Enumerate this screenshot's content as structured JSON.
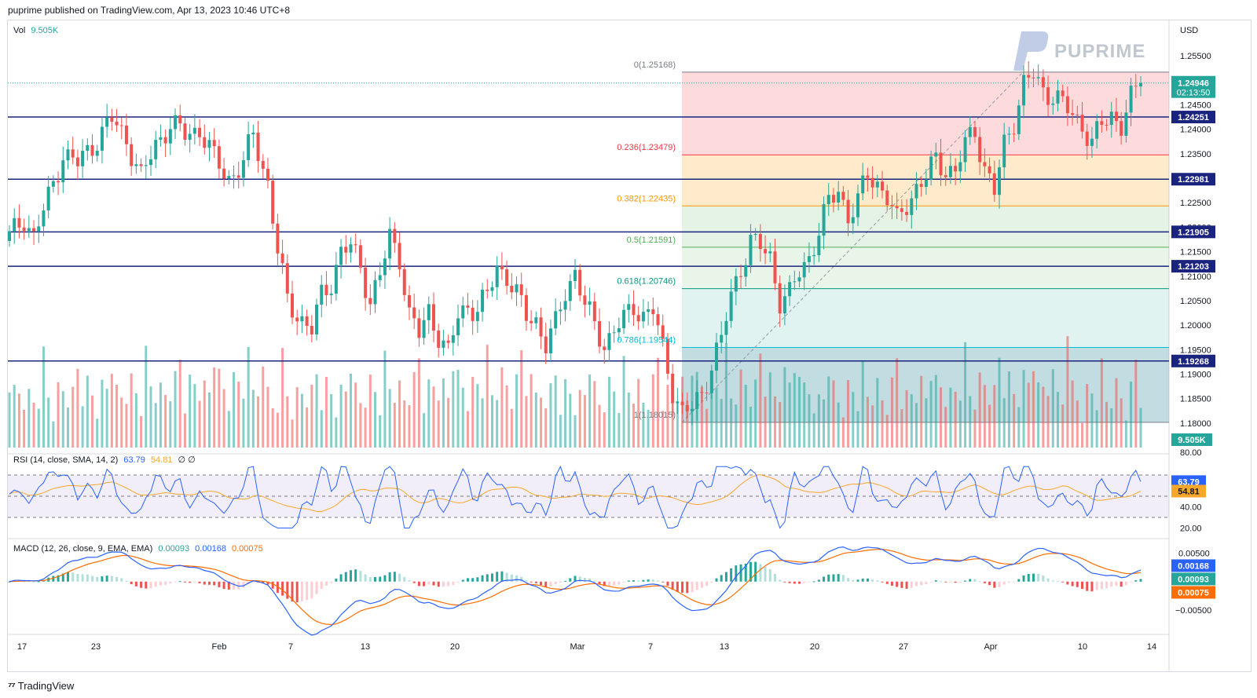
{
  "header": {
    "published": "puprime published on TradingView.com, Apr 13, 2023 10:46 UTC+8"
  },
  "footer": {
    "brand": "TradingView"
  },
  "watermark": {
    "text": "PUPRIME"
  },
  "colors": {
    "up": "#26a69a",
    "down": "#ef5350",
    "hline": "#1a237e",
    "rsi": "#2962ff",
    "rsi_ma": "#f7a72a",
    "macd": "#2962ff",
    "signal": "#ff6d00"
  },
  "price_pane": {
    "vol_label": "Vol",
    "vol_value": "9.505K",
    "currency": "USD",
    "last_price": "1.24946",
    "countdown": "02:13:50",
    "vol_tag": "9.505K",
    "axis_ticks": [
      "1.25500",
      "1.24500",
      "1.24000",
      "1.23500",
      "1.22500",
      "1.22000",
      "1.21500",
      "1.21000",
      "1.20500",
      "1.20000",
      "1.19500",
      "1.19000",
      "1.18500",
      "1.18000"
    ],
    "horizontal_levels": [
      "1.24251",
      "1.22981",
      "1.21905",
      "1.21203",
      "1.19268"
    ],
    "fib_labels": [
      "0(1.25168)",
      "0.236(1.23479)",
      "0.382(1.22435)",
      "0.5(1.21591)",
      "0.618(1.20746)",
      "0.786(1.19544)",
      "1(1.18015)"
    ]
  },
  "rsi_pane": {
    "label": "RSI (14, close, SMA, 14, 2)",
    "rsi_value": "63.79",
    "ma_value": "54.81",
    "extra": "∅  ∅",
    "axis_ticks": [
      "80.00",
      "40.00",
      "20.00"
    ],
    "tag_rsi": "63.79",
    "tag_ma": "54.81"
  },
  "macd_pane": {
    "label": "MACD (12, 26, close, 9, EMA, EMA)",
    "hist_value": "0.00093",
    "macd_value": "0.00168",
    "signal_value": "0.00075",
    "axis_ticks": [
      "0.00500",
      "−0.00500"
    ],
    "tag_macd": "0.00168",
    "tag_hist": "0.00093",
    "tag_signal": "0.00075"
  },
  "time_axis": [
    "17",
    "23",
    "Feb",
    "7",
    "13",
    "20",
    "Mar",
    "7",
    "13",
    "20",
    "27",
    "Apr",
    "10",
    "14"
  ],
  "chart_data": {
    "type": "candlestick",
    "symbol_currency": "USD",
    "y_range": [
      1.175,
      1.26
    ],
    "horizontal_levels": [
      1.24251,
      1.22981,
      1.21905,
      1.21203,
      1.19268
    ],
    "fibonacci": [
      {
        "level": "0",
        "price": 1.25168,
        "label": "0(1.25168)"
      },
      {
        "level": "0.236",
        "price": 1.23479,
        "label": "0.236(1.23479)"
      },
      {
        "level": "0.382",
        "price": 1.22435,
        "label": "0.382(1.22435)"
      },
      {
        "level": "0.5",
        "price": 1.21591,
        "label": "0.5(1.21591)"
      },
      {
        "level": "0.618",
        "price": 1.20746,
        "label": "0.618(1.20746)"
      },
      {
        "level": "0.786",
        "price": 1.19544,
        "label": "0.786(1.19544)"
      },
      {
        "level": "1",
        "price": 1.18015,
        "label": "1(1.18015)"
      }
    ],
    "close_path": [
      [
        0,
        1.218
      ],
      [
        3,
        1.222
      ],
      [
        5,
        1.218
      ],
      [
        8,
        1.226
      ],
      [
        11,
        1.235
      ],
      [
        14,
        1.233
      ],
      [
        18,
        1.238
      ],
      [
        21,
        1.242
      ],
      [
        24,
        1.238
      ],
      [
        27,
        1.23
      ],
      [
        30,
        1.237
      ],
      [
        33,
        1.241
      ],
      [
        36,
        1.239
      ],
      [
        39,
        1.24
      ],
      [
        42,
        1.234
      ],
      [
        45,
        1.23
      ],
      [
        48,
        1.233
      ],
      [
        50,
        1.239
      ],
      [
        53,
        1.229
      ],
      [
        55,
        1.215
      ],
      [
        57,
        1.205
      ],
      [
        60,
        1.201
      ],
      [
        62,
        1.199
      ],
      [
        64,
        1.206
      ],
      [
        66,
        1.209
      ],
      [
        68,
        1.215
      ],
      [
        70,
        1.216
      ],
      [
        72,
        1.212
      ],
      [
        74,
        1.205
      ],
      [
        76,
        1.21
      ],
      [
        78,
        1.218
      ],
      [
        80,
        1.214
      ],
      [
        82,
        1.202
      ],
      [
        84,
        1.198
      ],
      [
        86,
        1.203
      ],
      [
        88,
        1.198
      ],
      [
        90,
        1.194
      ],
      [
        92,
        1.202
      ],
      [
        94,
        1.204
      ],
      [
        96,
        1.203
      ],
      [
        98,
        1.206
      ],
      [
        100,
        1.212
      ],
      [
        102,
        1.21
      ],
      [
        104,
        1.206
      ],
      [
        106,
        1.202
      ],
      [
        108,
        1.201
      ],
      [
        110,
        1.196
      ],
      [
        112,
        1.2
      ],
      [
        114,
        1.207
      ],
      [
        116,
        1.211
      ],
      [
        118,
        1.204
      ],
      [
        120,
        1.2
      ],
      [
        122,
        1.196
      ],
      [
        124,
        1.199
      ],
      [
        126,
        1.201
      ],
      [
        128,
        1.204
      ],
      [
        130,
        1.202
      ],
      [
        132,
        1.203
      ],
      [
        134,
        1.195
      ],
      [
        136,
        1.187
      ],
      [
        138,
        1.182
      ],
      [
        140,
        1.183
      ],
      [
        142,
        1.186
      ],
      [
        144,
        1.192
      ],
      [
        146,
        1.197
      ],
      [
        148,
        1.206
      ],
      [
        150,
        1.212
      ],
      [
        152,
        1.217
      ],
      [
        154,
        1.216
      ],
      [
        156,
        1.214
      ],
      [
        158,
        1.205
      ],
      [
        160,
        1.206
      ],
      [
        162,
        1.211
      ],
      [
        164,
        1.214
      ],
      [
        166,
        1.219
      ],
      [
        168,
        1.225
      ],
      [
        170,
        1.228
      ],
      [
        172,
        1.222
      ],
      [
        174,
        1.225
      ],
      [
        176,
        1.231
      ],
      [
        178,
        1.229
      ],
      [
        180,
        1.226
      ],
      [
        182,
        1.221
      ],
      [
        184,
        1.225
      ],
      [
        186,
        1.228
      ],
      [
        188,
        1.23
      ],
      [
        190,
        1.234
      ],
      [
        192,
        1.232
      ],
      [
        194,
        1.231
      ],
      [
        196,
        1.237
      ],
      [
        198,
        1.24
      ],
      [
        200,
        1.232
      ],
      [
        202,
        1.227
      ],
      [
        204,
        1.237
      ],
      [
        206,
        1.242
      ],
      [
        208,
        1.249
      ],
      [
        210,
        1.251
      ],
      [
        212,
        1.248
      ],
      [
        214,
        1.247
      ],
      [
        216,
        1.245
      ],
      [
        218,
        1.243
      ],
      [
        220,
        1.241
      ],
      [
        222,
        1.237
      ],
      [
        224,
        1.241
      ],
      [
        226,
        1.243
      ],
      [
        228,
        1.241
      ],
      [
        230,
        1.246
      ],
      [
        232,
        1.2495
      ]
    ],
    "rsi": {
      "y_range": [
        10,
        90
      ],
      "bands": [
        70,
        50,
        30
      ],
      "last": 63.79,
      "ma_last": 54.81
    },
    "macd": {
      "y_range": [
        -0.009,
        0.007
      ],
      "last_macd": 0.00168,
      "last_signal": 0.00075,
      "last_hist": 0.00093
    }
  }
}
